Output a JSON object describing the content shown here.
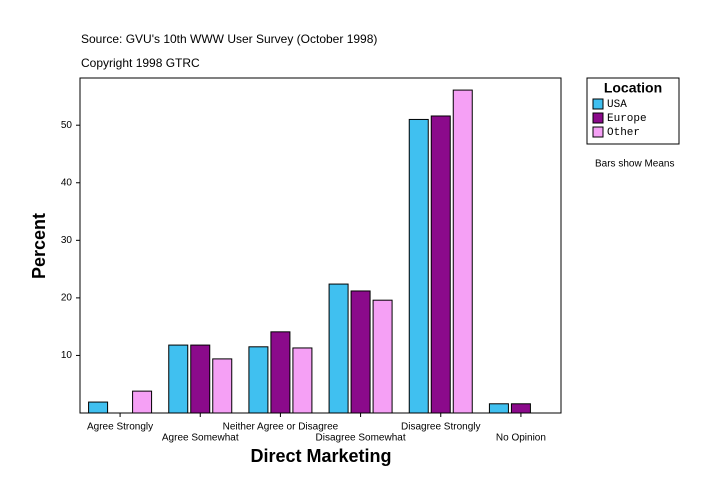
{
  "chart_data": {
    "type": "bar",
    "title": "Source: GVU's 10th WWW User Survey (October 1998)",
    "subtitle": "Copyright 1998 GTRC",
    "x_label": "Direct Marketing",
    "y_label": "Percent",
    "note": "Bars show Means",
    "legend_title": "Location",
    "legend_position": "right",
    "categories": [
      "Agree Strongly",
      "Agree Somewhat",
      "Neither Agree or Disagree",
      "Disagree Somewhat",
      "Disagree Strongly",
      "No Opinion"
    ],
    "series": [
      {
        "name": "USA",
        "color": "#40c0f0",
        "values": [
          1.9,
          11.8,
          11.5,
          22.4,
          51.0,
          1.6
        ]
      },
      {
        "name": "Europe",
        "color": "#8b0a8b",
        "values": [
          null,
          11.8,
          14.1,
          21.2,
          51.6,
          1.6
        ]
      },
      {
        "name": "Other",
        "color": "#f5a0f5",
        "values": [
          3.8,
          9.4,
          11.3,
          19.6,
          56.1,
          null
        ]
      }
    ],
    "ylim": [
      0,
      58.2
    ],
    "yticks": [
      10,
      20,
      30,
      40,
      50
    ],
    "grid": false
  }
}
